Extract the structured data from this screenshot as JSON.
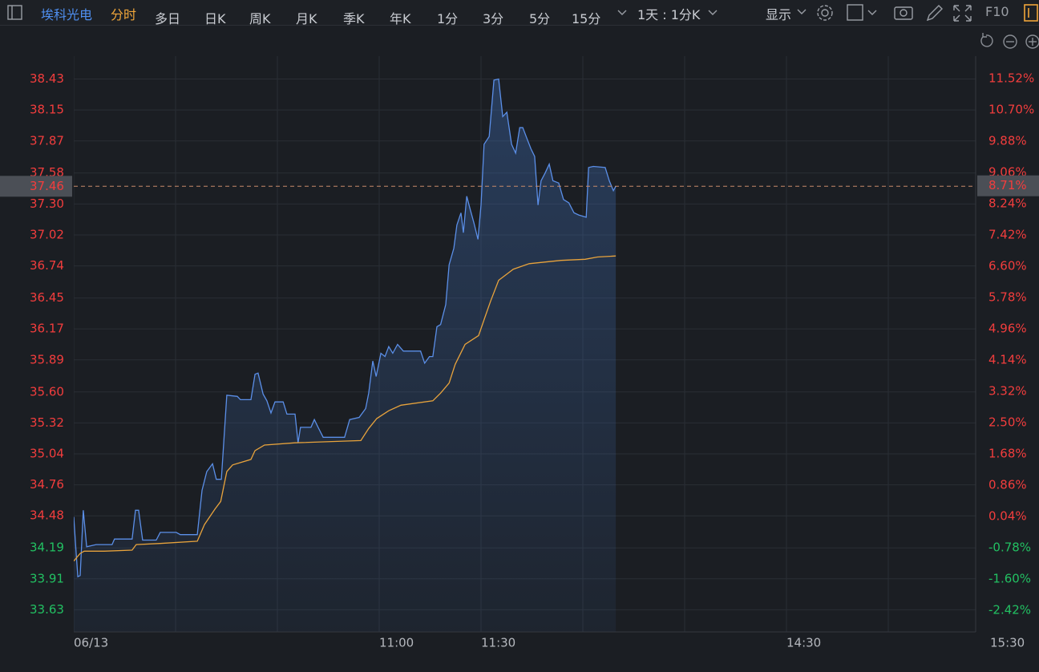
{
  "toolbar": {
    "stock": "埃科光电",
    "active_tab": "分时",
    "tabs": [
      "多日",
      "日K",
      "周K",
      "月K",
      "季K",
      "年K",
      "1分",
      "3分",
      "5分",
      "15分"
    ],
    "period": "1天 : 1分K",
    "display": "显示",
    "f10": "F10"
  },
  "chart_data": {
    "type": "line",
    "xlim": [
      0,
      270
    ],
    "ylim": [
      33.43,
      38.84
    ],
    "y2lim": [
      -2.99,
      12.7
    ],
    "xticks": [
      {
        "value": 0,
        "label": "06/13"
      },
      {
        "value": 90,
        "label": "11:00"
      },
      {
        "value": 120,
        "label": "11:30"
      },
      {
        "value": 210,
        "label": "14:30"
      },
      {
        "value": 270,
        "label": "15:30"
      }
    ],
    "x_gridlines": [
      0,
      30,
      60,
      90,
      120,
      150,
      180,
      210,
      240
    ],
    "yticks": [
      {
        "value": 38.43,
        "label": "38.43"
      },
      {
        "value": 38.15,
        "label": "38.15"
      },
      {
        "value": 37.87,
        "label": "37.87"
      },
      {
        "value": 37.58,
        "label": "37.58"
      },
      {
        "value": 37.3,
        "label": "37.30"
      },
      {
        "value": 37.02,
        "label": "37.02"
      },
      {
        "value": 36.74,
        "label": "36.74"
      },
      {
        "value": 36.45,
        "label": "36.45"
      },
      {
        "value": 36.17,
        "label": "36.17"
      },
      {
        "value": 35.89,
        "label": "35.89"
      },
      {
        "value": 35.6,
        "label": "35.60"
      },
      {
        "value": 35.32,
        "label": "35.32"
      },
      {
        "value": 35.04,
        "label": "35.04"
      },
      {
        "value": 34.76,
        "label": "34.76"
      },
      {
        "value": 34.48,
        "label": "34.48"
      },
      {
        "value": 34.19,
        "label": "34.19"
      },
      {
        "value": 33.91,
        "label": "33.91"
      },
      {
        "value": 33.63,
        "label": "33.63"
      }
    ],
    "y2ticks": [
      {
        "value": 11.52,
        "label": "11.52%"
      },
      {
        "value": 10.7,
        "label": "10.70%"
      },
      {
        "value": 9.88,
        "label": "9.88%"
      },
      {
        "value": 9.06,
        "label": "9.06%"
      },
      {
        "value": 8.24,
        "label": "8.24%"
      },
      {
        "value": 7.42,
        "label": "7.42%"
      },
      {
        "value": 6.6,
        "label": "6.60%"
      },
      {
        "value": 5.78,
        "label": "5.78%"
      },
      {
        "value": 4.96,
        "label": "4.96%"
      },
      {
        "value": 4.14,
        "label": "4.14%"
      },
      {
        "value": 3.32,
        "label": "3.32%"
      },
      {
        "value": 2.5,
        "label": "2.50%"
      },
      {
        "value": 1.68,
        "label": "1.68%"
      },
      {
        "value": 0.86,
        "label": "0.86%"
      },
      {
        "value": 0.04,
        "label": "0.04%"
      },
      {
        "value": -0.78,
        "label": "-0.78%"
      },
      {
        "value": -1.6,
        "label": "-1.60%"
      },
      {
        "value": -2.42,
        "label": "-2.42%"
      }
    ],
    "up_color": "#f23d3d",
    "down_color": "#22c062",
    "grid": true,
    "last": {
      "value": 37.46,
      "label": "37.46",
      "pct": {
        "value": 8.71,
        "label": "8.71%"
      }
    },
    "series": [
      {
        "color": "#5b8fe8",
        "fill": true,
        "x": [
          0,
          0.7,
          1.2,
          1.9,
          2.8,
          3.8,
          6.6,
          11.3,
          12,
          17.2,
          18.2,
          19.1,
          20.3,
          24.3,
          25.5,
          30.2,
          31.4,
          36.4,
          37.8,
          39.2,
          40.9,
          42,
          43.5,
          45.1,
          48.2,
          49.1,
          52.2,
          53.4,
          54.3,
          55.8,
          56.9,
          58.1,
          59.3,
          61.7,
          62.8,
          65.2,
          66.1,
          66.8,
          69.9,
          70.9,
          72,
          73.5,
          79.8,
          81.3,
          84.1,
          86,
          86.9,
          88.1,
          89.1,
          90.5,
          91.7,
          92.8,
          94,
          95.4,
          97.1,
          102.2,
          103.4,
          104.8,
          105.8,
          107,
          108.1,
          109.6,
          110.6,
          112,
          112.9,
          114.1,
          114.8,
          115.8,
          116.9,
          117.9,
          119.1,
          120,
          120.9,
          122.4,
          123.8,
          125.2,
          126.4,
          127.6,
          129,
          130.2,
          131.4,
          132.3,
          133.3,
          134.7,
          135.8,
          136.8,
          137.7,
          138.9,
          140.1,
          141.2,
          142.9,
          144.3,
          145.9,
          147.4,
          148.8,
          151,
          151.7,
          153.1,
          156.6,
          157.8,
          159,
          159.7
        ],
        "values": [
          34.47,
          34.14,
          33.93,
          33.94,
          34.53,
          34.2,
          34.22,
          34.22,
          34.27,
          34.27,
          34.53,
          34.53,
          34.26,
          34.26,
          34.33,
          34.33,
          34.31,
          34.31,
          34.71,
          34.88,
          34.95,
          34.81,
          34.81,
          35.57,
          35.56,
          35.53,
          35.53,
          35.76,
          35.77,
          35.58,
          35.52,
          35.41,
          35.51,
          35.51,
          35.4,
          35.4,
          35.14,
          35.28,
          35.28,
          35.35,
          35.28,
          35.19,
          35.19,
          35.35,
          35.37,
          35.45,
          35.59,
          35.88,
          35.74,
          35.95,
          35.92,
          36.01,
          35.95,
          36.03,
          35.97,
          35.97,
          35.86,
          35.92,
          35.92,
          36.19,
          36.21,
          36.39,
          36.75,
          36.9,
          37.11,
          37.22,
          37.04,
          37.37,
          37.24,
          37.13,
          36.98,
          37.29,
          37.84,
          37.91,
          38.42,
          38.43,
          38.09,
          38.13,
          37.84,
          37.76,
          37.99,
          37.99,
          37.91,
          37.8,
          37.73,
          37.29,
          37.51,
          37.58,
          37.66,
          37.51,
          37.49,
          37.34,
          37.31,
          37.22,
          37.2,
          37.18,
          37.63,
          37.64,
          37.63,
          37.51,
          37.42,
          37.46
        ]
      },
      {
        "color": "#e8a33c",
        "fill": false,
        "x": [
          0,
          1.9,
          3.1,
          9,
          17.2,
          18.4,
          25.5,
          36.4,
          38.5,
          41.6,
          43.3,
          45.1,
          46.8,
          52.2,
          53.4,
          56.2,
          65.2,
          84.6,
          86.9,
          89.3,
          92.8,
          96.4,
          105.8,
          108.1,
          110.6,
          112.4,
          115.3,
          119.3,
          121.2,
          122.8,
          125.2,
          129.5,
          134.2,
          143.6,
          150.7,
          154.3,
          159.7
        ],
        "values": [
          34.07,
          34.14,
          34.16,
          34.16,
          34.17,
          34.22,
          34.23,
          34.25,
          34.4,
          34.54,
          34.61,
          34.88,
          34.94,
          34.99,
          35.07,
          35.12,
          35.14,
          35.16,
          35.27,
          35.36,
          35.43,
          35.48,
          35.52,
          35.59,
          35.68,
          35.85,
          36.03,
          36.11,
          36.28,
          36.42,
          36.61,
          36.71,
          36.76,
          36.79,
          36.8,
          36.82,
          36.83
        ]
      }
    ]
  }
}
